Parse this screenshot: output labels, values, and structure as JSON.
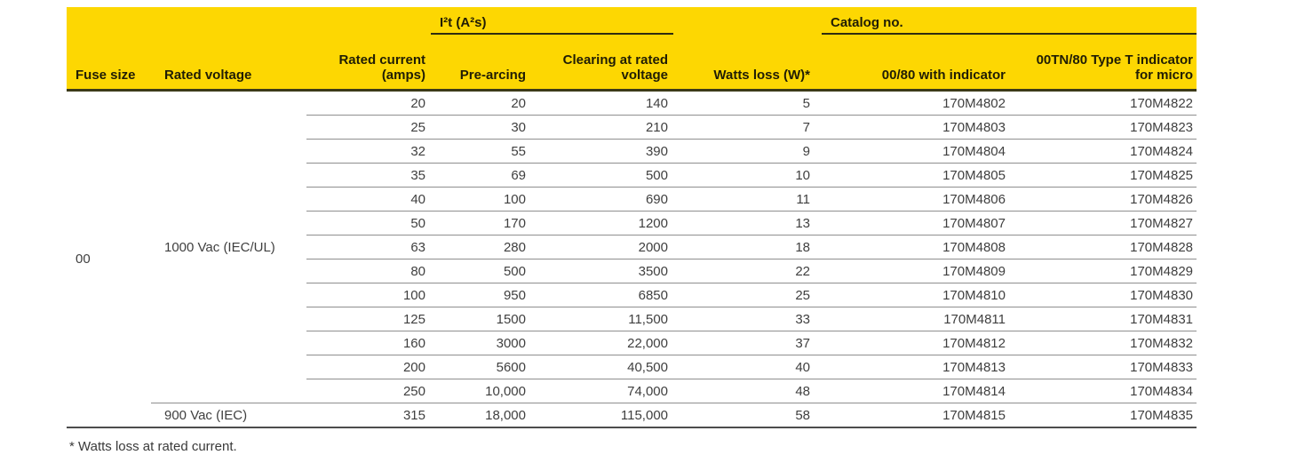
{
  "table": {
    "group_headers": {
      "i2t": "I²t (A²s)",
      "catalog": "Catalog no."
    },
    "columns": {
      "fuse_size": "Fuse size",
      "rated_voltage": "Rated voltage",
      "rated_current": "Rated current (amps)",
      "pre_arcing": "Pre-arcing",
      "clearing": "Clearing at rated voltage",
      "watts_loss": "Watts loss (W)*",
      "catalog_indicator": "00/80 with indicator",
      "catalog_micro": "00TN/80 Type T indicator for micro"
    },
    "fuse_size": "00",
    "voltage_groups": [
      {
        "rated_voltage": "1000 Vac (IEC/UL)",
        "row_count": 13
      },
      {
        "rated_voltage": "900 Vac (IEC)",
        "row_count": 1
      }
    ],
    "rows": [
      {
        "rated_current": "20",
        "pre_arcing": "20",
        "clearing": "140",
        "watts_loss": "5",
        "catalog_indicator": "170M4802",
        "catalog_micro": "170M4822"
      },
      {
        "rated_current": "25",
        "pre_arcing": "30",
        "clearing": "210",
        "watts_loss": "7",
        "catalog_indicator": "170M4803",
        "catalog_micro": "170M4823"
      },
      {
        "rated_current": "32",
        "pre_arcing": "55",
        "clearing": "390",
        "watts_loss": "9",
        "catalog_indicator": "170M4804",
        "catalog_micro": "170M4824"
      },
      {
        "rated_current": "35",
        "pre_arcing": "69",
        "clearing": "500",
        "watts_loss": "10",
        "catalog_indicator": "170M4805",
        "catalog_micro": "170M4825"
      },
      {
        "rated_current": "40",
        "pre_arcing": "100",
        "clearing": "690",
        "watts_loss": "11",
        "catalog_indicator": "170M4806",
        "catalog_micro": "170M4826"
      },
      {
        "rated_current": "50",
        "pre_arcing": "170",
        "clearing": "1200",
        "watts_loss": "13",
        "catalog_indicator": "170M4807",
        "catalog_micro": "170M4827"
      },
      {
        "rated_current": "63",
        "pre_arcing": "280",
        "clearing": "2000",
        "watts_loss": "18",
        "catalog_indicator": "170M4808",
        "catalog_micro": "170M4828"
      },
      {
        "rated_current": "80",
        "pre_arcing": "500",
        "clearing": "3500",
        "watts_loss": "22",
        "catalog_indicator": "170M4809",
        "catalog_micro": "170M4829"
      },
      {
        "rated_current": "100",
        "pre_arcing": "950",
        "clearing": "6850",
        "watts_loss": "25",
        "catalog_indicator": "170M4810",
        "catalog_micro": "170M4830"
      },
      {
        "rated_current": "125",
        "pre_arcing": "1500",
        "clearing": "11,500",
        "watts_loss": "33",
        "catalog_indicator": "170M4811",
        "catalog_micro": "170M4831"
      },
      {
        "rated_current": "160",
        "pre_arcing": "3000",
        "clearing": "22,000",
        "watts_loss": "37",
        "catalog_indicator": "170M4812",
        "catalog_micro": "170M4832"
      },
      {
        "rated_current": "200",
        "pre_arcing": "5600",
        "clearing": "40,500",
        "watts_loss": "40",
        "catalog_indicator": "170M4813",
        "catalog_micro": "170M4833"
      },
      {
        "rated_current": "250",
        "pre_arcing": "10,000",
        "clearing": "74,000",
        "watts_loss": "48",
        "catalog_indicator": "170M4814",
        "catalog_micro": "170M4834"
      },
      {
        "rated_current": "315",
        "pre_arcing": "18,000",
        "clearing": "115,000",
        "watts_loss": "58",
        "catalog_indicator": "170M4815",
        "catalog_micro": "170M4835"
      }
    ],
    "footnote": "* Watts loss at rated current."
  }
}
